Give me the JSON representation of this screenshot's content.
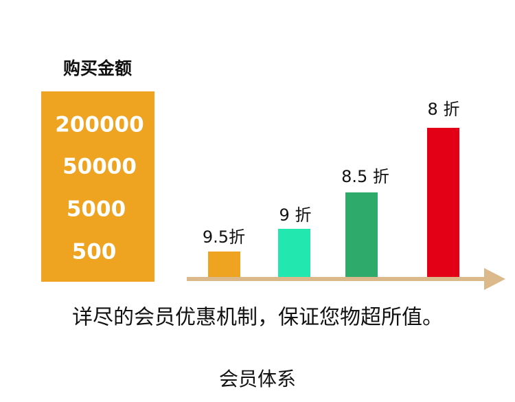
{
  "header": {
    "title": "购买金额"
  },
  "amounts": [
    "200000",
    "50000",
    "5000",
    "500"
  ],
  "discounts": [
    "9.5折",
    "9 折",
    "8.5 折",
    "8 折"
  ],
  "tagline": "详尽的会员优惠机制，保证您物超所值。",
  "footer": "会员体系"
}
